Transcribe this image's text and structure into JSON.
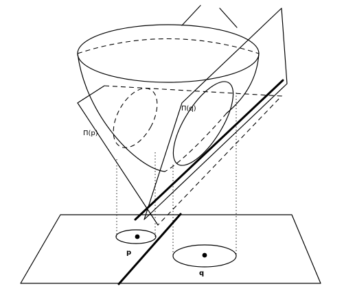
{
  "labels": {
    "plane_p": "Π(p)",
    "plane_q": "Π(q)",
    "point_p": "p",
    "point_q": "q"
  }
}
